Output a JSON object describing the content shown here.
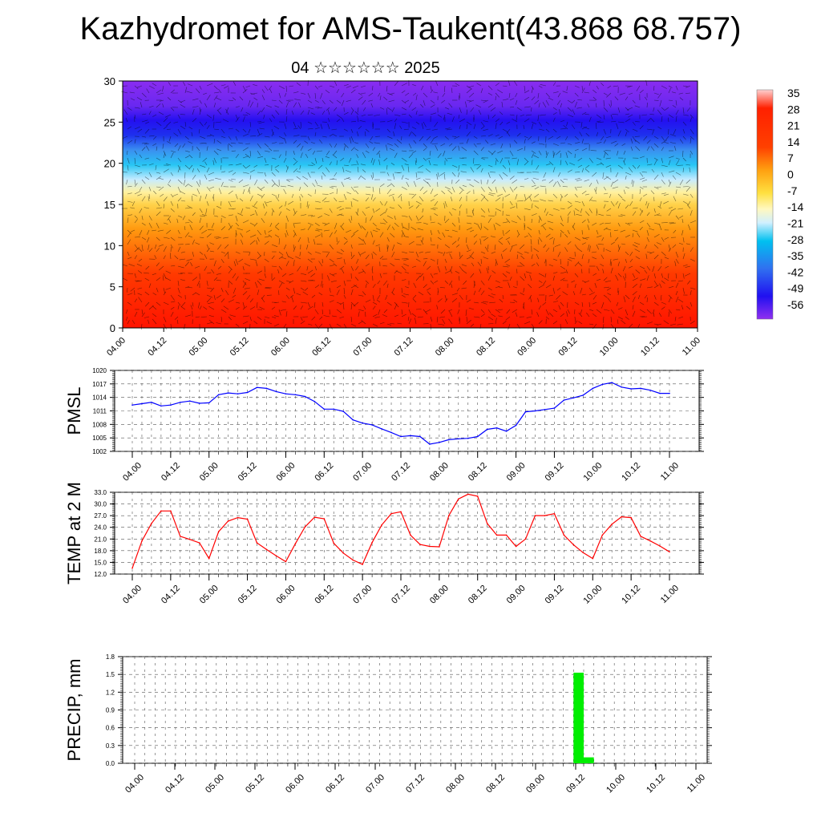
{
  "header": {
    "title": "Kazhydromet for AMS-Taukent(43.868 68.757)",
    "subtitle": "04 ☆☆☆☆☆☆ 2025"
  },
  "colors": {
    "pmsl_line": "#0000ff",
    "temp_line": "#ff0000",
    "precip_bar": "#00ee00",
    "grid": "#555555",
    "colorbar_top": "#ffc0c0",
    "colorbar_hot": "#ff2000",
    "colorbar_mid": "#ffe040",
    "colorbar_cold": "#00c0f0",
    "colorbar_bottom": "#8020f0"
  },
  "chart_data": [
    {
      "type": "heatmap",
      "name": "upper-air-section",
      "x_ticks": [
        "04.00",
        "04.12",
        "05.00",
        "05.12",
        "06.00",
        "06.12",
        "07.00",
        "07.12",
        "08.00",
        "08.12",
        "09.00",
        "09.12",
        "10.00",
        "10.12",
        "11.00"
      ],
      "y_ticks": [
        0,
        5,
        10,
        15,
        20,
        25,
        30
      ],
      "ylim": [
        0,
        30
      ],
      "colorbar_labels": [
        35,
        28,
        21,
        14,
        7,
        0,
        -7,
        -14,
        -21,
        -28,
        -35,
        -42,
        -49,
        -56
      ],
      "overlay": "wind-barbs"
    },
    {
      "type": "line",
      "name": "pmsl",
      "ylabel": "PMSL",
      "ylim": [
        1002,
        1020
      ],
      "y_ticks": [
        1002,
        1005,
        1008,
        1011,
        1014,
        1017,
        1020
      ],
      "x_ticks": [
        "04.00",
        "04.12",
        "05.00",
        "05.12",
        "06.00",
        "06.12",
        "07.00",
        "07.12",
        "08.00",
        "08.12",
        "09.00",
        "09.12",
        "10.00",
        "10.12",
        "11.00"
      ],
      "values": [
        1012.3,
        1012.6,
        1012.9,
        1012.1,
        1012.3,
        1012.9,
        1013.2,
        1012.7,
        1012.8,
        1014.6,
        1015.0,
        1014.8,
        1015.1,
        1016.2,
        1016.0,
        1015.3,
        1014.8,
        1014.6,
        1014.2,
        1013.1,
        1011.4,
        1011.4,
        1010.9,
        1009.0,
        1008.3,
        1007.9,
        1007.0,
        1006.2,
        1005.3,
        1005.5,
        1005.3,
        1003.6,
        1004.0,
        1004.6,
        1004.8,
        1004.9,
        1005.3,
        1006.9,
        1007.2,
        1006.5,
        1007.8,
        1010.8,
        1011.0,
        1011.3,
        1011.6,
        1013.4,
        1013.9,
        1014.5,
        1016.0,
        1016.9,
        1017.3,
        1016.3,
        1015.9,
        1016.0,
        1015.6,
        1014.9,
        1014.9
      ]
    },
    {
      "type": "line",
      "name": "temp-2m",
      "ylabel": "TEMP at 2 M",
      "ylim": [
        12.0,
        33.0
      ],
      "y_ticks": [
        "12.0",
        "15.0",
        "18.0",
        "21.0",
        "24.0",
        "27.0",
        "30.0",
        "33.0"
      ],
      "x_ticks": [
        "04.00",
        "04.12",
        "05.00",
        "05.12",
        "06.00",
        "06.12",
        "07.00",
        "07.12",
        "08.00",
        "08.12",
        "09.00",
        "09.12",
        "10.00",
        "10.12",
        "11.00"
      ],
      "values": [
        13.5,
        20.5,
        25.0,
        28.2,
        28.2,
        21.7,
        20.9,
        20.0,
        16.0,
        22.9,
        25.6,
        26.5,
        26.1,
        20.0,
        18.3,
        16.7,
        15.2,
        19.8,
        24.1,
        26.6,
        26.2,
        19.9,
        17.4,
        15.6,
        14.5,
        20.1,
        24.6,
        27.5,
        28.0,
        22.0,
        19.6,
        19.1,
        19.0,
        27.0,
        31.3,
        32.5,
        32.0,
        25.0,
        22.0,
        22.0,
        19.1,
        21.0,
        27.0,
        27.0,
        27.5,
        22.0,
        19.5,
        17.5,
        16.0,
        22.0,
        24.8,
        26.7,
        26.5,
        21.7,
        20.5,
        19.2,
        17.7
      ]
    },
    {
      "type": "bar",
      "name": "precip",
      "ylabel": "PRECIP, mm",
      "ylim": [
        0.0,
        1.8
      ],
      "y_ticks": [
        "0.0",
        "0.3",
        "0.6",
        "0.9",
        "1.2",
        "1.5",
        "1.8"
      ],
      "x_ticks": [
        "04.00",
        "04.12",
        "05.00",
        "05.12",
        "06.00",
        "06.12",
        "07.00",
        "07.12",
        "08.00",
        "08.12",
        "09.00",
        "09.12",
        "10.00",
        "10.12",
        "11.00"
      ],
      "values": [
        0,
        0,
        0,
        0,
        0,
        0,
        0,
        0,
        0,
        0,
        0,
        0,
        0,
        0,
        0,
        0,
        0,
        0,
        0,
        0,
        0,
        0,
        0,
        0,
        0,
        0,
        0,
        0,
        0,
        0,
        0,
        0,
        0,
        0,
        0,
        0,
        0,
        0,
        0,
        0,
        0,
        0,
        0,
        1.53,
        0.1,
        0,
        0,
        0,
        0,
        0,
        0,
        0,
        0,
        0,
        0,
        0
      ]
    }
  ]
}
